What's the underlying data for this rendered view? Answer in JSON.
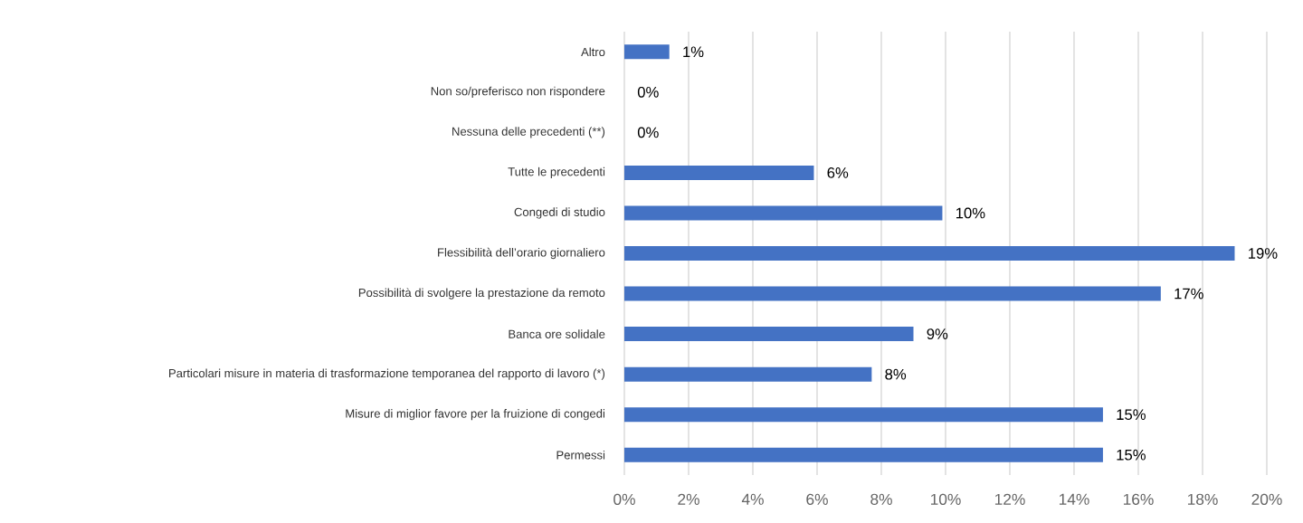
{
  "chart_data": {
    "type": "bar",
    "orientation": "horizontal",
    "categories": [
      "Altro",
      "Non so/preferisco non rispondere",
      "Nessuna delle precedenti (**)",
      "Tutte le precedenti",
      "Congedi di studio",
      "Flessibilità dell’orario giornaliero",
      "Possibilità di svolgere la prestazione da remoto",
      "Banca ore solidale",
      "Particolari misure in materia di trasformazione temporanea del rapporto di lavoro (*)",
      "Misure di miglior favore per la fruizione di congedi",
      "Permessi"
    ],
    "values": [
      1.4,
      0,
      0,
      5.9,
      9.9,
      19.0,
      16.7,
      9.0,
      7.7,
      14.9,
      14.9
    ],
    "value_labels": [
      "1%",
      "0%",
      "0%",
      "6%",
      "10%",
      "19%",
      "17%",
      "9%",
      "8%",
      "15%",
      "15%"
    ],
    "color": "#4472c4",
    "xlim": [
      0,
      20
    ],
    "xticks": [
      {
        "value": 0,
        "label": "0%"
      },
      {
        "value": 2,
        "label": "2%"
      },
      {
        "value": 4,
        "label": "4%"
      },
      {
        "value": 6,
        "label": "6%"
      },
      {
        "value": 8,
        "label": "8%"
      },
      {
        "value": 10,
        "label": "10%"
      },
      {
        "value": 12,
        "label": "12%"
      },
      {
        "value": 14,
        "label": "14%"
      },
      {
        "value": 16,
        "label": "16%"
      },
      {
        "value": 18,
        "label": "18%"
      },
      {
        "value": 20,
        "label": "20%"
      }
    ],
    "grid": "x"
  }
}
